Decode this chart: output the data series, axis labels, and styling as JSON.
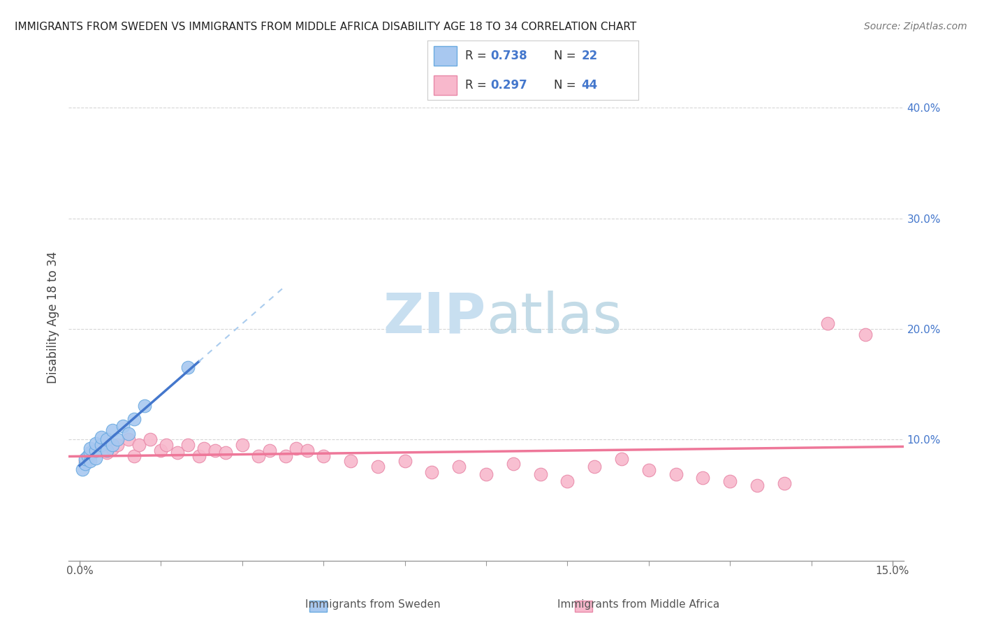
{
  "title": "IMMIGRANTS FROM SWEDEN VS IMMIGRANTS FROM MIDDLE AFRICA DISABILITY AGE 18 TO 34 CORRELATION CHART",
  "source": "Source: ZipAtlas.com",
  "ylabel": "Disability Age 18 to 34",
  "x_label_sweden": "Immigrants from Sweden",
  "x_label_middle_africa": "Immigrants from Middle Africa",
  "xlim": [
    -0.002,
    0.152
  ],
  "ylim": [
    -0.01,
    0.43
  ],
  "y_ticks": [
    0.1,
    0.2,
    0.3,
    0.4
  ],
  "y_tick_labels": [
    "10.0%",
    "20.0%",
    "30.0%",
    "40.0%"
  ],
  "legend_R1": "0.738",
  "legend_N1": "22",
  "legend_R2": "0.297",
  "legend_N2": "44",
  "color_sweden_fill": "#a8c8f0",
  "color_sweden_edge": "#6aaae0",
  "color_middle_africa_fill": "#f8b8cc",
  "color_middle_africa_edge": "#e888a8",
  "color_sweden_line": "#4477cc",
  "color_middle_africa_line": "#ee7799",
  "color_sweden_line_ext": "#aaccee",
  "watermark_color": "#c8dff0",
  "background_color": "#ffffff",
  "grid_color": "#cccccc",
  "sweden_x": [
    0.0005,
    0.001,
    0.001,
    0.0015,
    0.002,
    0.002,
    0.002,
    0.003,
    0.003,
    0.003,
    0.004,
    0.004,
    0.005,
    0.005,
    0.006,
    0.006,
    0.007,
    0.008,
    0.009,
    0.01,
    0.012,
    0.02
  ],
  "sweden_y": [
    0.073,
    0.078,
    0.082,
    0.085,
    0.08,
    0.088,
    0.092,
    0.083,
    0.09,
    0.096,
    0.095,
    0.102,
    0.09,
    0.1,
    0.095,
    0.108,
    0.1,
    0.112,
    0.105,
    0.118,
    0.13,
    0.165
  ],
  "middle_africa_x": [
    0.001,
    0.002,
    0.003,
    0.005,
    0.006,
    0.007,
    0.009,
    0.01,
    0.011,
    0.013,
    0.015,
    0.016,
    0.018,
    0.02,
    0.022,
    0.023,
    0.025,
    0.027,
    0.03,
    0.033,
    0.035,
    0.038,
    0.04,
    0.042,
    0.045,
    0.05,
    0.055,
    0.06,
    0.065,
    0.07,
    0.075,
    0.08,
    0.085,
    0.09,
    0.095,
    0.1,
    0.105,
    0.11,
    0.115,
    0.12,
    0.125,
    0.13,
    0.138,
    0.145
  ],
  "middle_africa_y": [
    0.08,
    0.085,
    0.09,
    0.088,
    0.092,
    0.095,
    0.1,
    0.085,
    0.095,
    0.1,
    0.09,
    0.095,
    0.088,
    0.095,
    0.085,
    0.092,
    0.09,
    0.088,
    0.095,
    0.085,
    0.09,
    0.085,
    0.092,
    0.09,
    0.085,
    0.08,
    0.075,
    0.08,
    0.07,
    0.075,
    0.068,
    0.078,
    0.068,
    0.062,
    0.075,
    0.082,
    0.072,
    0.068,
    0.065,
    0.062,
    0.058,
    0.06,
    0.205,
    0.195
  ]
}
